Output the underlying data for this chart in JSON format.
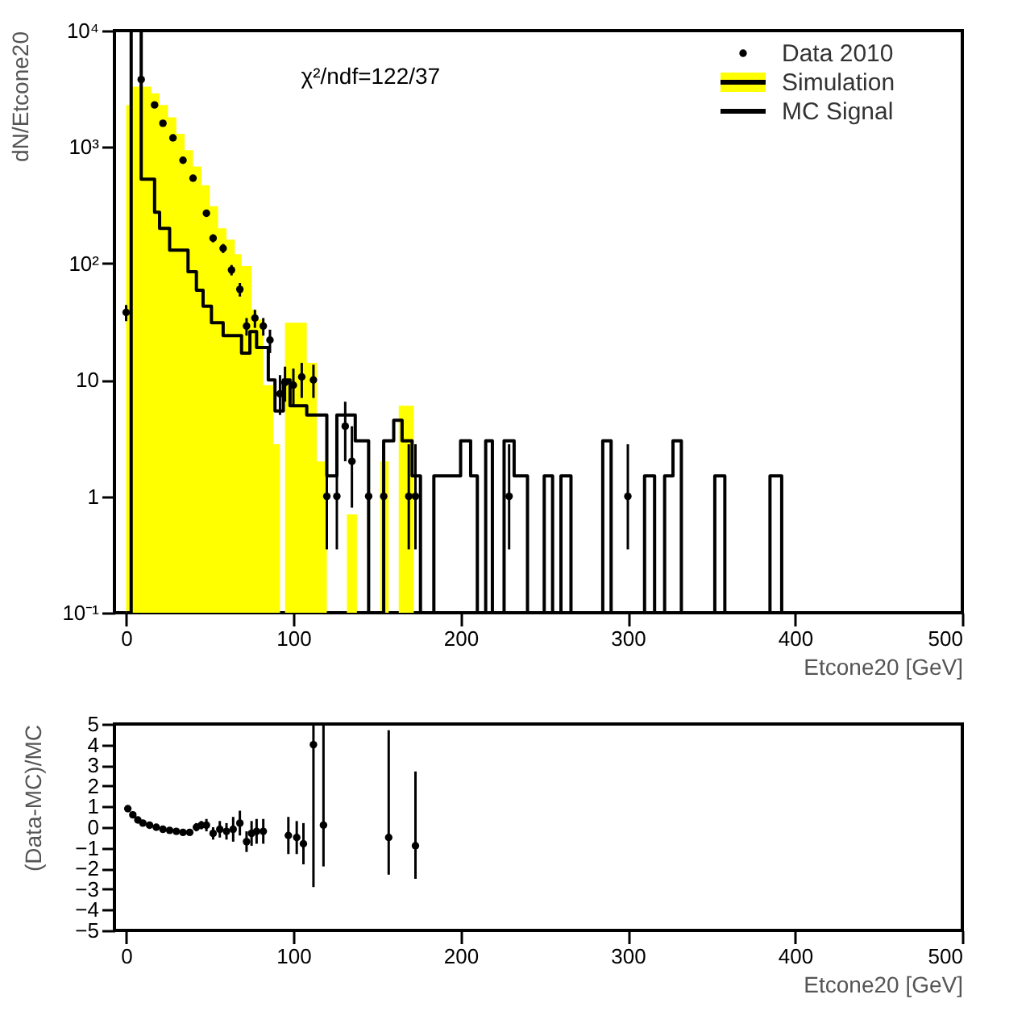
{
  "chart_data": [
    {
      "type": "step",
      "xlabel": "Etcone20 [GeV]",
      "ylabel": "dN/Etcone20",
      "log": true,
      "grid": false,
      "legend": "top right",
      "annotations": [
        "χ²/ndf=122/37"
      ],
      "xlim": [
        -7,
        500
      ],
      "xticks": [
        0,
        100,
        200,
        300,
        400,
        500
      ],
      "ylim": [
        0.1,
        10000
      ],
      "yticks": [
        {
          "value": 0.1,
          "label": "10⁻¹"
        },
        1,
        10,
        {
          "value": 100,
          "label": "10²"
        },
        {
          "value": 1000,
          "label": "10³"
        },
        {
          "value": 10000,
          "label": "10⁴"
        }
      ],
      "series": [
        {
          "name": "Data 2010",
          "type": "scatter",
          "marker": "circle",
          "color": "#000000",
          "x": [
            0,
            9,
            17,
            22,
            28,
            34,
            40,
            48,
            52,
            58,
            63,
            68,
            72,
            77,
            82,
            86,
            92,
            95,
            100,
            105,
            112,
            120,
            126,
            131,
            135,
            145,
            154,
            169,
            173,
            229,
            300
          ],
          "values": [
            38,
            3800,
            2300,
            1600,
            1200,
            770,
            540,
            270,
            165,
            135,
            88,
            60,
            29,
            34,
            29,
            22,
            7.6,
            9.5,
            9,
            10.6,
            10,
            1,
            1,
            4,
            2,
            1,
            1,
            1,
            1,
            1,
            1
          ],
          "errors": [
            6,
            60,
            48,
            40,
            35,
            28,
            23,
            16,
            13,
            12,
            9,
            8,
            5,
            6,
            5,
            5,
            [
              5,
              11
            ],
            [
              6.5,
              13
            ],
            [
              6,
              12.5
            ],
            [
              7,
              14
            ],
            [
              7,
              13.5
            ],
            [
              0.35,
              2.8
            ],
            [
              0.35,
              2.8
            ],
            [
              2,
              6.5
            ],
            [
              0.8,
              4
            ],
            [
              0.35,
              2.8
            ],
            [
              0.35,
              2.8
            ],
            [
              0.35,
              2.8
            ],
            [
              0.35,
              2.8
            ],
            [
              0.35,
              2.8
            ],
            [
              0.35,
              2.8
            ]
          ]
        },
        {
          "name": "Simulation",
          "type": "area",
          "color": "#ffff00",
          "x": [
            0,
            3,
            15,
            20,
            25,
            30,
            35,
            40,
            45,
            50,
            55,
            60,
            65,
            69,
            75,
            78,
            82,
            88,
            92,
            95,
            108,
            114,
            120,
            132,
            138,
            152,
            157,
            163,
            172
          ],
          "values": [
            2300,
            3300,
            2900,
            2300,
            1800,
            1300,
            940,
            680,
            470,
            310,
            200,
            160,
            120,
            95,
            40,
            33,
            9,
            2.8,
            0.1,
            31,
            14,
            2,
            0.1,
            0.7,
            0.1,
            2,
            0.1,
            6,
            0.1
          ]
        },
        {
          "name": "MC Signal",
          "type": "step",
          "color": "#000000",
          "x": [
            0,
            3,
            9,
            17,
            20,
            26,
            37,
            42,
            46,
            51,
            58,
            69,
            74,
            78,
            85,
            89,
            94,
            98,
            108,
            114,
            120,
            126,
            137,
            145,
            154,
            160,
            165,
            171,
            176,
            184,
            200,
            206,
            210,
            215,
            219,
            226,
            232,
            240,
            250,
            255,
            260,
            266,
            285,
            290,
            310,
            316,
            322,
            327,
            332,
            352,
            358,
            385,
            392
          ],
          "values": [
            0.1,
            10000,
            530,
            275,
            200,
            130,
            85,
            59,
            43,
            31,
            24,
            17,
            26,
            19,
            10,
            5.4,
            10,
            6,
            5,
            5,
            1.5,
            5,
            3,
            0.1,
            3,
            4.5,
            3,
            1.5,
            0.1,
            1.5,
            3,
            1.5,
            0.1,
            3,
            0.1,
            3,
            1.5,
            0.1,
            1.5,
            0.1,
            1.5,
            0.1,
            3,
            0.1,
            1.5,
            0.1,
            1.5,
            3,
            0.1,
            1.5,
            0.1,
            1.5,
            0.1
          ]
        }
      ]
    },
    {
      "type": "scatter",
      "xlabel": "Etcone20 [GeV]",
      "ylabel": "(Data-MC)/MC",
      "grid": false,
      "marker": "circle",
      "color": "#000000",
      "xlim": [
        -7,
        500
      ],
      "xticks": [
        0,
        100,
        200,
        300,
        400,
        500
      ],
      "ylim": [
        -5,
        5
      ],
      "yticks": [
        -5,
        -4,
        -3,
        -2,
        -1,
        0,
        1,
        2,
        3,
        4,
        5
      ],
      "x": [
        1,
        4,
        7,
        10,
        14,
        18,
        22,
        26,
        30,
        34,
        38,
        42,
        45,
        48,
        52,
        56,
        60,
        64,
        68,
        72,
        75,
        78,
        82,
        97,
        102,
        106,
        112,
        118,
        157,
        173
      ],
      "values": [
        0.9,
        0.6,
        0.35,
        0.2,
        0.1,
        0,
        -0.1,
        -0.15,
        -0.2,
        -0.25,
        -0.25,
        0,
        0.1,
        0.1,
        -0.3,
        -0.1,
        -0.2,
        -0.1,
        0.2,
        -0.7,
        -0.3,
        -0.2,
        -0.2,
        -0.4,
        -0.5,
        -0.8,
        4,
        0.1,
        -0.5,
        -0.9
      ],
      "errors": [
        null,
        null,
        null,
        null,
        null,
        null,
        null,
        null,
        null,
        null,
        null,
        0.2,
        0.2,
        0.3,
        0.3,
        0.4,
        0.4,
        0.6,
        0.6,
        0.5,
        0.6,
        0.6,
        0.6,
        0.9,
        0.8,
        1.0,
        [
          -2.9,
          5
        ],
        [
          -1.9,
          5
        ],
        [
          -2.3,
          4.7
        ],
        [
          -2.5,
          2.7
        ]
      ]
    }
  ]
}
